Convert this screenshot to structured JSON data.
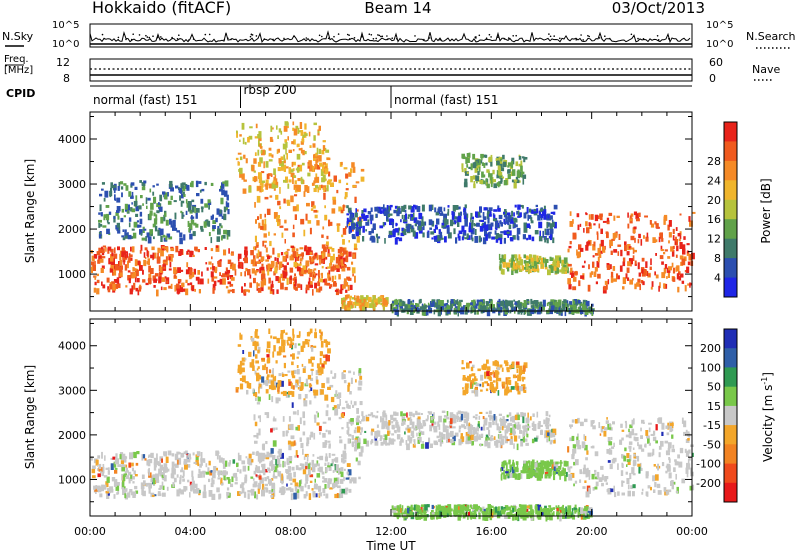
{
  "header": {
    "radar": "Hokkaido (fitACF)",
    "beam": "Beam 14",
    "date": "03/Oct/2013"
  },
  "noise_panel": {
    "left_label": "N.Sky",
    "right_label": "N.Search",
    "left_ticks": [
      "10^5",
      "10^0"
    ],
    "right_ticks": [
      "10^5",
      "10^0"
    ]
  },
  "freq_panel": {
    "label_line1": "Freq.",
    "label_line2": "[MHz]",
    "left_ticks": [
      "12",
      "8"
    ],
    "right_ticks": [
      "60",
      "0"
    ],
    "right_label": "Nave"
  },
  "cpid": {
    "label": "CPID",
    "segments": [
      {
        "label": "normal (fast) 151",
        "start_h": 0,
        "end_h": 6
      },
      {
        "label": "rbsp 200",
        "start_h": 6,
        "end_h": 12
      },
      {
        "label": "normal (fast) 151",
        "start_h": 12,
        "end_h": 24
      }
    ]
  },
  "time_axis": {
    "label": "Time UT",
    "ticks": [
      "00:00",
      "04:00",
      "08:00",
      "12:00",
      "16:00",
      "20:00",
      "00:00"
    ]
  },
  "range_axis": {
    "label": "Slant Range [km]",
    "ticks": [
      "1000",
      "2000",
      "3000",
      "4000"
    ]
  },
  "chart_data": [
    {
      "type": "heatmap",
      "name": "power",
      "xlabel": "Time UT",
      "ylabel": "Slant Range [km]",
      "xlim_h": [
        0,
        24
      ],
      "ylim_km": [
        180,
        4600
      ],
      "colorbar": {
        "label": "Power [dB]",
        "ticks": [
          "4",
          "8",
          "12",
          "16",
          "20",
          "24",
          "28"
        ],
        "colors": [
          "#1f26e6",
          "#2c4fb0",
          "#3f7a6a",
          "#61a24a",
          "#b6c33c",
          "#f0b52c",
          "#f58a26",
          "#f05a1e",
          "#e8231a"
        ]
      },
      "regions": [
        {
          "t": [
            0.0,
            10.4
          ],
          "r": [
            650,
            1650
          ],
          "level": 7
        },
        {
          "t": [
            6.5,
            10.8
          ],
          "r": [
            900,
            3500
          ],
          "level": 6
        },
        {
          "t": [
            5.8,
            9.5
          ],
          "r": [
            2900,
            4400
          ],
          "level": 5
        },
        {
          "t": [
            0.3,
            5.5
          ],
          "r": [
            1800,
            3100
          ],
          "level": 2
        },
        {
          "t": [
            10.2,
            18.5
          ],
          "r": [
            1800,
            2550
          ],
          "level": 1
        },
        {
          "t": [
            14.8,
            17.3
          ],
          "r": [
            3000,
            3700
          ],
          "level": 3
        },
        {
          "t": [
            16.3,
            19.0
          ],
          "r": [
            1100,
            1450
          ],
          "level": 4
        },
        {
          "t": [
            19.0,
            24.0
          ],
          "r": [
            700,
            2400
          ],
          "level": 7
        },
        {
          "t": [
            10.0,
            11.8
          ],
          "r": [
            300,
            550
          ],
          "level": 5
        },
        {
          "t": [
            12.0,
            20.0
          ],
          "r": [
            200,
            450
          ],
          "level": 2
        }
      ]
    },
    {
      "type": "heatmap",
      "name": "velocity",
      "xlabel": "Time UT",
      "ylabel": "Slant Range [km]",
      "xlim_h": [
        0,
        24
      ],
      "ylim_km": [
        180,
        4600
      ],
      "colorbar": {
        "label": "Velocity [m s^-1]",
        "ticks": [
          "200",
          "100",
          "50",
          "15",
          "-15",
          "-50",
          "-100",
          "-200"
        ],
        "colors": [
          "#1f2db5",
          "#2f5fa8",
          "#2f9a52",
          "#79c84a",
          "#c8c8c8",
          "#f3a62a",
          "#f28322",
          "#f04a1c",
          "#e8191a"
        ]
      },
      "regions": [
        {
          "t": [
            0.0,
            10.4
          ],
          "r": [
            650,
            1650
          ],
          "v": "gray"
        },
        {
          "t": [
            6.5,
            10.8
          ],
          "r": [
            900,
            3500
          ],
          "v": "gray"
        },
        {
          "t": [
            5.8,
            9.5
          ],
          "r": [
            2900,
            4400
          ],
          "v": "orange"
        },
        {
          "t": [
            10.2,
            18.5
          ],
          "r": [
            1800,
            2550
          ],
          "v": "gray"
        },
        {
          "t": [
            14.8,
            17.3
          ],
          "r": [
            3000,
            3700
          ],
          "v": "orange"
        },
        {
          "t": [
            16.3,
            19.0
          ],
          "r": [
            1100,
            1450
          ],
          "v": "green"
        },
        {
          "t": [
            19.0,
            24.0
          ],
          "r": [
            700,
            2400
          ],
          "v": "gray"
        },
        {
          "t": [
            12.0,
            20.0
          ],
          "r": [
            200,
            450
          ],
          "v": "green"
        }
      ]
    }
  ]
}
